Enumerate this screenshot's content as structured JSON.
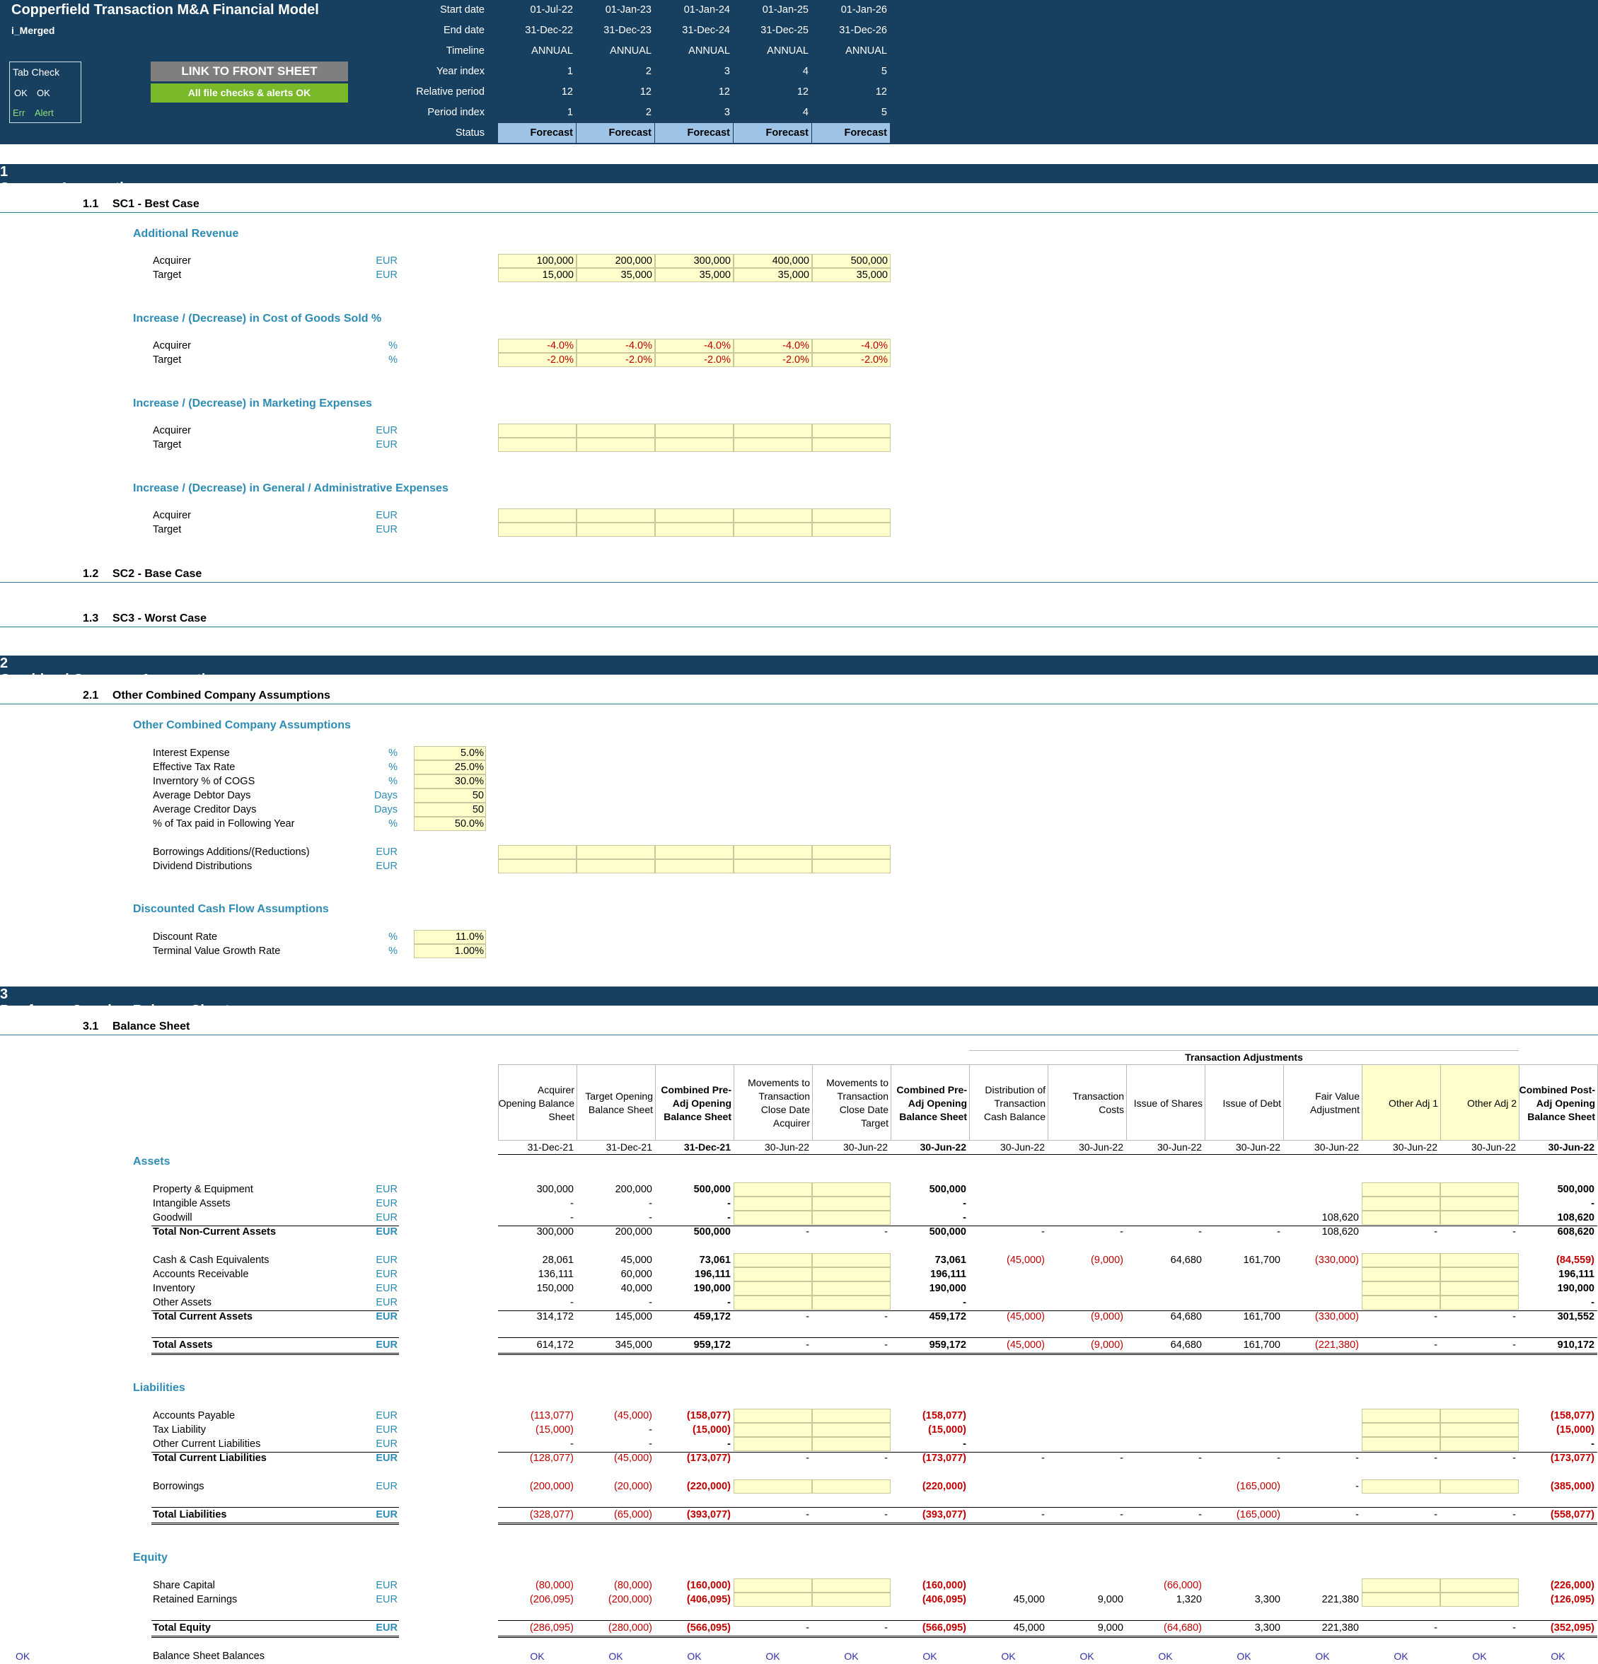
{
  "header": {
    "title": "Copperfield Transaction M&A Financial Model",
    "sheet": "i_Merged",
    "tab_check": {
      "title": "Tab Check",
      "ok1": "OK",
      "ok2": "OK",
      "err": "Err",
      "alert": "Alert"
    },
    "link_button": "LINK TO FRONT SHEET",
    "checks_ok": "All file checks & alerts OK",
    "timeline_labels": [
      "Start date",
      "End date",
      "Timeline",
      "Year index",
      "Relative period",
      "Period index",
      "Status"
    ],
    "timeline_rows": [
      [
        "01-Jul-22",
        "01-Jan-23",
        "01-Jan-24",
        "01-Jan-25",
        "01-Jan-26"
      ],
      [
        "31-Dec-22",
        "31-Dec-23",
        "31-Dec-24",
        "31-Dec-25",
        "31-Dec-26"
      ],
      [
        "ANNUAL",
        "ANNUAL",
        "ANNUAL",
        "ANNUAL",
        "ANNUAL"
      ],
      [
        "1",
        "2",
        "3",
        "4",
        "5"
      ],
      [
        "12",
        "12",
        "12",
        "12",
        "12"
      ],
      [
        "1",
        "2",
        "3",
        "4",
        "5"
      ],
      [
        "Forecast",
        "Forecast",
        "Forecast",
        "Forecast",
        "Forecast"
      ]
    ]
  },
  "sections": [
    {
      "num": "1",
      "title": "Synergy Assumptions"
    },
    {
      "num": "2",
      "title": "Combined Company Assumptions"
    },
    {
      "num": "3",
      "title": "Pro-forma Opening Balance Sheet"
    }
  ],
  "subsections": [
    {
      "num": "1.1",
      "title": "SC1 - Best Case"
    },
    {
      "num": "1.2",
      "title": "SC2 - Base Case"
    },
    {
      "num": "1.3",
      "title": "SC3 - Worst Case"
    },
    {
      "num": "2.1",
      "title": "Other Combined Company Assumptions"
    },
    {
      "num": "3.1",
      "title": "Balance Sheet"
    }
  ],
  "synergy": {
    "groups": [
      "Additional Revenue",
      "Increase / (Decrease) in Cost of Goods Sold %",
      "Increase / (Decrease) in Marketing Expenses",
      "Increase / (Decrease) in General / Administrative Expenses"
    ],
    "acquirer": "Acquirer",
    "target": "Target",
    "eur": "EUR",
    "pct": "%",
    "rev_acq": [
      "100,000",
      "200,000",
      "300,000",
      "400,000",
      "500,000"
    ],
    "rev_tgt": [
      "15,000",
      "35,000",
      "35,000",
      "35,000",
      "35,000"
    ],
    "cogs_acq": [
      "-4.0%",
      "-4.0%",
      "-4.0%",
      "-4.0%",
      "-4.0%"
    ],
    "cogs_tgt": [
      "-2.0%",
      "-2.0%",
      "-2.0%",
      "-2.0%",
      "-2.0%"
    ]
  },
  "combined": {
    "group": "Other Combined Company Assumptions",
    "dcf_group": "Discounted Cash Flow Assumptions",
    "rows": [
      {
        "label": "Interest Expense",
        "unit": "%",
        "value": "5.0%"
      },
      {
        "label": "Effective Tax Rate",
        "unit": "%",
        "value": "25.0%"
      },
      {
        "label": "Inverntory % of COGS",
        "unit": "%",
        "value": "30.0%"
      },
      {
        "label": "Average Debtor Days",
        "unit": "Days",
        "value": "50"
      },
      {
        "label": "Average Creditor Days",
        "unit": "Days",
        "value": "50"
      },
      {
        "label": "% of Tax paid in Following Year",
        "unit": "%",
        "value": "50.0%"
      }
    ],
    "borrow": "Borrowings Additions/(Reductions)",
    "dividend": "Dividend Distributions",
    "dcf": [
      {
        "label": "Discount Rate",
        "unit": "%",
        "value": "11.0%"
      },
      {
        "label": "Terminal Value Growth Rate",
        "unit": "%",
        "value": "1.00%"
      }
    ]
  },
  "bs": {
    "trans_adj": "Transaction Adjustments",
    "columns": [
      "Acquirer Opening Balance Sheet",
      "Target Opening Balance Sheet",
      "Combined Pre-Adj Opening Balance Sheet",
      "Movements to Transaction Close Date Acquirer",
      "Movements to Transaction Close Date Target",
      "Combined Pre-Adj Opening Balance Sheet",
      "Distribution of Transaction Cash Balance",
      "Transaction Costs",
      "Issue of Shares",
      "Issue of Debt",
      "Fair Value Adjustment",
      "Other Adj 1",
      "Other Adj 2",
      "Combined Post-Adj Opening Balance Sheet"
    ],
    "dates": [
      "31-Dec-21",
      "31-Dec-21",
      "31-Dec-21",
      "30-Jun-22",
      "30-Jun-22",
      "30-Jun-22",
      "30-Jun-22",
      "30-Jun-22",
      "30-Jun-22",
      "30-Jun-22",
      "30-Jun-22",
      "30-Jun-22",
      "30-Jun-22",
      "30-Jun-22"
    ],
    "groups": [
      "Assets",
      "Liabilities",
      "Equity"
    ],
    "rows": [
      {
        "label": "Property & Equipment",
        "v": [
          "300,000",
          "200,000",
          "500,000",
          "",
          "",
          "500,000",
          "",
          "",
          "",
          "",
          "",
          "",
          "",
          "500,000"
        ]
      },
      {
        "label": "Intangible Assets",
        "v": [
          "-",
          "-",
          "-",
          "",
          "",
          "-",
          "",
          "",
          "",
          "",
          "",
          "",
          "",
          "-"
        ]
      },
      {
        "label": "Goodwill",
        "v": [
          "-",
          "-",
          "-",
          "",
          "",
          "-",
          "",
          "",
          "",
          "",
          "108,620",
          "",
          "",
          "108,620"
        ]
      },
      {
        "label": "Total Non-Current Assets",
        "v": [
          "300,000",
          "200,000",
          "500,000",
          "-",
          "-",
          "500,000",
          "-",
          "-",
          "-",
          "-",
          "108,620",
          "-",
          "-",
          "608,620"
        ]
      },
      {
        "label": "Cash & Cash Equivalents",
        "v": [
          "28,061",
          "45,000",
          "73,061",
          "",
          "",
          "73,061",
          "(45,000)",
          "(9,000)",
          "64,680",
          "161,700",
          "(330,000)",
          "",
          "",
          "(84,559)"
        ]
      },
      {
        "label": "Accounts Receivable",
        "v": [
          "136,111",
          "60,000",
          "196,111",
          "",
          "",
          "196,111",
          "",
          "",
          "",
          "",
          "",
          "",
          "",
          "196,111"
        ]
      },
      {
        "label": "Inventory",
        "v": [
          "150,000",
          "40,000",
          "190,000",
          "",
          "",
          "190,000",
          "",
          "",
          "",
          "",
          "",
          "",
          "",
          "190,000"
        ]
      },
      {
        "label": "Other Assets",
        "v": [
          "-",
          "-",
          "-",
          "",
          "",
          "-",
          "",
          "",
          "",
          "",
          "",
          "",
          "",
          "-"
        ]
      },
      {
        "label": "Total Current Assets",
        "v": [
          "314,172",
          "145,000",
          "459,172",
          "-",
          "-",
          "459,172",
          "(45,000)",
          "(9,000)",
          "64,680",
          "161,700",
          "(330,000)",
          "-",
          "-",
          "301,552"
        ]
      },
      {
        "label": "Total Assets",
        "v": [
          "614,172",
          "345,000",
          "959,172",
          "-",
          "-",
          "959,172",
          "(45,000)",
          "(9,000)",
          "64,680",
          "161,700",
          "(221,380)",
          "-",
          "-",
          "910,172"
        ]
      },
      {
        "label": "Accounts Payable",
        "v": [
          "(113,077)",
          "(45,000)",
          "(158,077)",
          "",
          "",
          "(158,077)",
          "",
          "",
          "",
          "",
          "",
          "",
          "",
          "(158,077)"
        ]
      },
      {
        "label": "Tax Liability",
        "v": [
          "(15,000)",
          "-",
          "(15,000)",
          "",
          "",
          "(15,000)",
          "",
          "",
          "",
          "",
          "",
          "",
          "",
          "(15,000)"
        ]
      },
      {
        "label": "Other Current Liabilities",
        "v": [
          "-",
          "-",
          "-",
          "",
          "",
          "-",
          "",
          "",
          "",
          "",
          "",
          "",
          "",
          "-"
        ]
      },
      {
        "label": "Total Current Liabilities",
        "v": [
          "(128,077)",
          "(45,000)",
          "(173,077)",
          "-",
          "-",
          "(173,077)",
          "-",
          "-",
          "-",
          "-",
          "-",
          "-",
          "-",
          "(173,077)"
        ]
      },
      {
        "label": "Borrowings",
        "v": [
          "(200,000)",
          "(20,000)",
          "(220,000)",
          "",
          "",
          "(220,000)",
          "",
          "",
          "",
          "(165,000)",
          "-",
          "",
          "",
          "(385,000)"
        ]
      },
      {
        "label": "Total Liabilities",
        "v": [
          "(328,077)",
          "(65,000)",
          "(393,077)",
          "-",
          "-",
          "(393,077)",
          "-",
          "-",
          "-",
          "(165,000)",
          "-",
          "-",
          "-",
          "(558,077)"
        ]
      },
      {
        "label": "Share Capital",
        "v": [
          "(80,000)",
          "(80,000)",
          "(160,000)",
          "",
          "",
          "(160,000)",
          "",
          "",
          "(66,000)",
          "",
          "",
          "",
          "",
          "(226,000)"
        ]
      },
      {
        "label": "Retained Earnings",
        "v": [
          "(206,095)",
          "(200,000)",
          "(406,095)",
          "",
          "",
          "(406,095)",
          "45,000",
          "9,000",
          "1,320",
          "3,300",
          "221,380",
          "",
          "",
          "(126,095)"
        ]
      },
      {
        "label": "Total Equity",
        "v": [
          "(286,095)",
          "(280,000)",
          "(566,095)",
          "-",
          "-",
          "(566,095)",
          "45,000",
          "9,000",
          "(64,680)",
          "3,300",
          "221,380",
          "-",
          "-",
          "(352,095)"
        ]
      },
      {
        "label": "Balance Sheet Balances",
        "v": [
          "OK",
          "OK",
          "OK",
          "OK",
          "OK",
          "OK",
          "OK",
          "OK",
          "OK",
          "OK",
          "OK",
          "OK",
          "OK",
          "OK"
        ]
      }
    ],
    "left_ok": "OK"
  }
}
